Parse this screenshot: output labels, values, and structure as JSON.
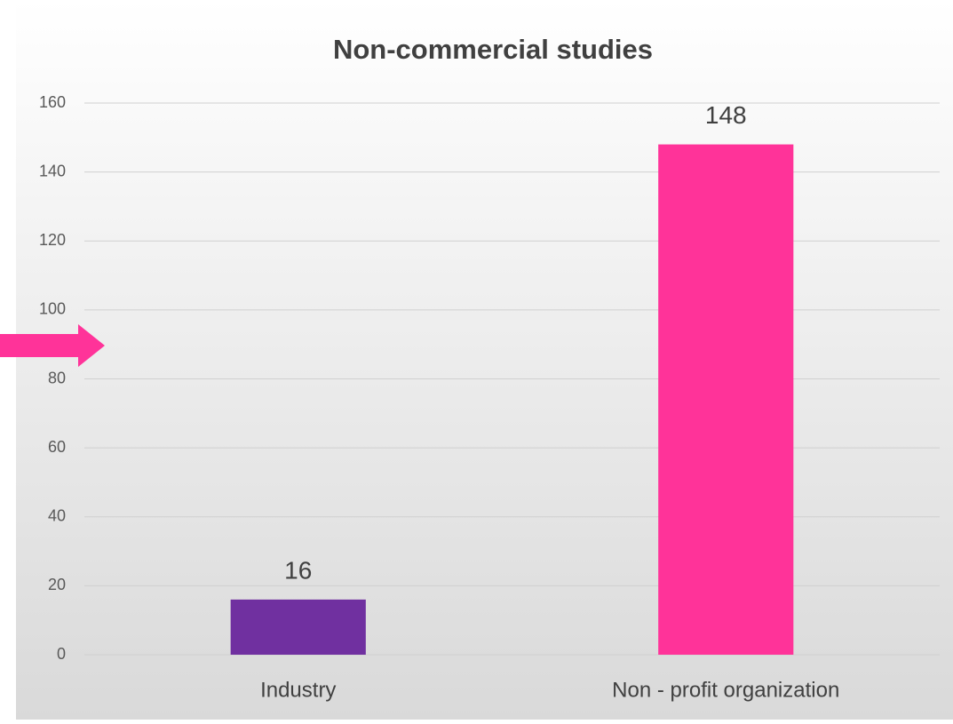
{
  "chart_data": {
    "type": "bar",
    "title": "Non-commercial studies",
    "categories": [
      "Industry",
      "Non - profit organization"
    ],
    "values": [
      16,
      148
    ],
    "colors": [
      "#7030a0",
      "#ff3399"
    ],
    "ylim": [
      0,
      160
    ],
    "yticks": [
      0,
      20,
      40,
      60,
      80,
      100,
      120,
      140,
      160
    ],
    "grid": true
  }
}
